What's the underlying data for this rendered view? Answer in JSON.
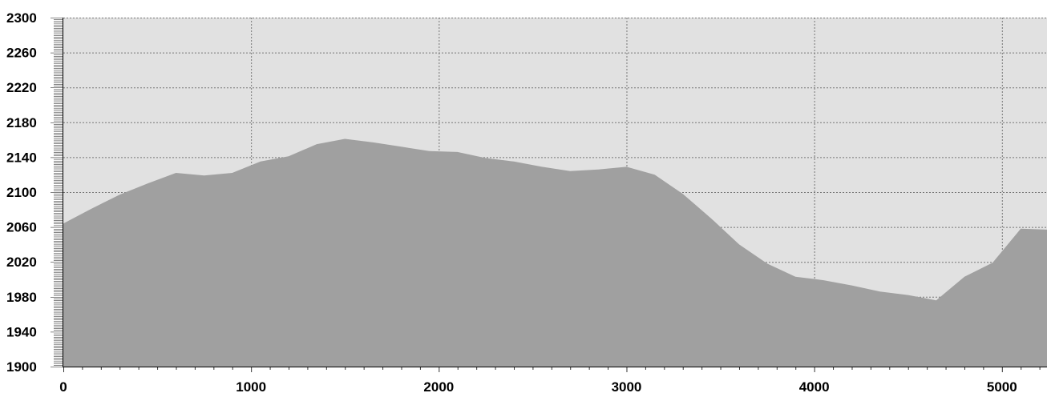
{
  "chart_data": {
    "type": "area",
    "title": "",
    "xlabel": "",
    "ylabel": "",
    "xlim": [
      0,
      5240
    ],
    "ylim": [
      1900,
      2300
    ],
    "grid": true,
    "x_ticks": [
      0,
      1000,
      2000,
      3000,
      4000,
      5000
    ],
    "x_tick_labels": [
      "0",
      "1000",
      "2000",
      "3000",
      "4000",
      "5000"
    ],
    "y_ticks": [
      1900,
      1940,
      1980,
      2020,
      2060,
      2100,
      2140,
      2180,
      2220,
      2260,
      2300
    ],
    "y_tick_labels": [
      "1900",
      "1940",
      "1980",
      "2020",
      "2060",
      "2100",
      "2140",
      "2180",
      "2220",
      "2260",
      "2300"
    ],
    "series": [
      {
        "x": [
          0,
          150,
          300,
          450,
          600,
          750,
          900,
          1050,
          1200,
          1350,
          1500,
          1650,
          1800,
          1950,
          2100,
          2250,
          2400,
          2550,
          2700,
          2850,
          3000,
          3150,
          3300,
          3450,
          3600,
          3750,
          3900,
          4050,
          4200,
          4350,
          4500,
          4650,
          4800,
          4950,
          5100,
          5240
        ],
        "y": [
          2064,
          2081,
          2097,
          2110,
          2122,
          2119,
          2122,
          2135,
          2141,
          2155,
          2161,
          2157,
          2152,
          2147,
          2146,
          2139,
          2135,
          2129,
          2124,
          2126,
          2129,
          2120,
          2098,
          2070,
          2040,
          2018,
          2003,
          1999,
          1993,
          1986,
          1982,
          1976,
          2003,
          2019,
          2058,
          2057
        ]
      }
    ],
    "colors": {
      "plot_background": "#e1e1e1",
      "area_fill": "#a0a0a0",
      "grid": "#777777",
      "axis": "#000000"
    }
  }
}
